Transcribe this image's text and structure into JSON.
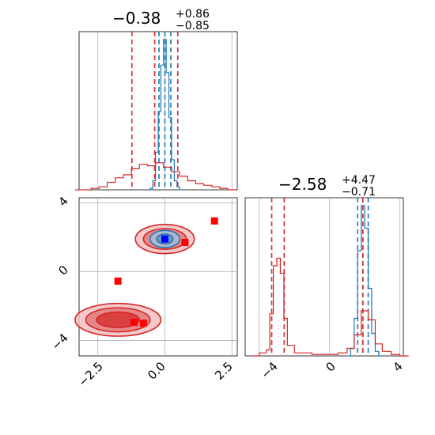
{
  "chart_data": [
    {
      "type": "histogram",
      "panel": "x-marginal",
      "title": {
        "median": "−0.38",
        "plus": "+0.86",
        "minus": "−0.85"
      },
      "xlim": [
        -3.2,
        2.7
      ],
      "grid": true,
      "series": [
        {
          "name": "",
          "color": "#1f77b4",
          "x": [
            -0.6,
            -0.5,
            -0.4,
            -0.3,
            -0.2,
            -0.1,
            0.0,
            0.1,
            0.2,
            0.3,
            0.4,
            0.5,
            0.6
          ],
          "density": [
            0.0,
            0.01,
            0.06,
            0.25,
            0.52,
            0.83,
            1.0,
            0.78,
            0.48,
            0.2,
            0.06,
            0.02,
            0.0
          ],
          "quantile_lines": [
            -0.22,
            0.0,
            0.22
          ]
        },
        {
          "name": "",
          "color": "#d62728",
          "x": [
            -3.2,
            -2.9,
            -2.6,
            -2.3,
            -2.0,
            -1.7,
            -1.4,
            -1.1,
            -0.8,
            -0.5,
            -0.2,
            0.1,
            0.4,
            0.7,
            1.0,
            1.3,
            1.6,
            1.9,
            2.2,
            2.5
          ],
          "density": [
            0.0,
            0.0,
            0.01,
            0.02,
            0.05,
            0.08,
            0.1,
            0.14,
            0.17,
            0.16,
            0.18,
            0.15,
            0.12,
            0.09,
            0.06,
            0.04,
            0.03,
            0.02,
            0.01,
            0.0
          ],
          "quantile_lines": [
            -1.23,
            -0.38,
            0.48
          ]
        }
      ]
    },
    {
      "type": "histogram",
      "panel": "y-marginal",
      "title": {
        "median": "−2.58",
        "plus": "+4.47",
        "minus": "−0.71"
      },
      "xlim": [
        -4.8,
        4.2
      ],
      "xticks": [
        "−4",
        "0",
        "4"
      ],
      "grid": true,
      "series": [
        {
          "name": "",
          "color": "#1f77b4",
          "x": [
            1.0,
            1.2,
            1.4,
            1.6,
            1.8,
            2.0,
            2.2,
            2.4,
            2.6,
            2.8
          ],
          "density": [
            0.0,
            0.05,
            0.25,
            0.7,
            1.0,
            0.85,
            0.45,
            0.15,
            0.03,
            0.0
          ],
          "quantile_lines": [
            1.6,
            1.9,
            2.2
          ]
        },
        {
          "name": "",
          "color": "#d62728",
          "x": [
            -4.4,
            -4.0,
            -3.6,
            -3.4,
            -3.2,
            -3.0,
            -2.8,
            -2.6,
            -2.4,
            -2.0,
            -1.5,
            -1.0,
            -0.5,
            0.0,
            0.5,
            1.0,
            1.4,
            1.8,
            2.2,
            2.6,
            3.0,
            3.5,
            4.0
          ],
          "density": [
            0.0,
            0.02,
            0.04,
            0.28,
            0.6,
            0.65,
            0.55,
            0.25,
            0.07,
            0.02,
            0.02,
            0.01,
            0.01,
            0.01,
            0.02,
            0.05,
            0.14,
            0.3,
            0.24,
            0.08,
            0.03,
            0.01,
            0.0
          ],
          "quantile_lines": [
            -3.29,
            -2.58,
            1.89
          ]
        }
      ]
    },
    {
      "type": "contour-scatter",
      "panel": "joint",
      "xlim": [
        -3.2,
        2.7
      ],
      "ylim": [
        -4.9,
        4.3
      ],
      "xticks": [
        "−2.5",
        "0.0",
        "2.5"
      ],
      "yticks": [
        "−4",
        "0",
        "4"
      ],
      "grid": true,
      "contours": [
        {
          "color": "#d62728",
          "cx": 0.0,
          "cy": 1.9,
          "rx": [
            1.1,
            0.8,
            0.45
          ],
          "ry": [
            0.85,
            0.6,
            0.35
          ]
        },
        {
          "color": "#d62728",
          "cx": -1.75,
          "cy": -2.8,
          "rx": [
            1.6,
            1.2,
            0.8
          ],
          "ry": [
            0.95,
            0.7,
            0.45
          ]
        },
        {
          "color": "#1f77b4",
          "cx": 0.0,
          "cy": 1.9,
          "rx": [
            0.55,
            0.3
          ],
          "ry": [
            0.5,
            0.28
          ]
        }
      ],
      "markers": [
        {
          "color": "#ff0000",
          "x": 1.85,
          "y": 2.95
        },
        {
          "color": "#ff0000",
          "x": 0.75,
          "y": 1.7
        },
        {
          "color": "#ff0000",
          "x": -1.75,
          "y": -0.55
        },
        {
          "color": "#ff0000",
          "x": -1.15,
          "y": -2.95
        },
        {
          "color": "#ff0000",
          "x": -0.8,
          "y": -3.0
        },
        {
          "color": "#0000ff",
          "x": 0.0,
          "y": 1.9
        }
      ]
    }
  ]
}
